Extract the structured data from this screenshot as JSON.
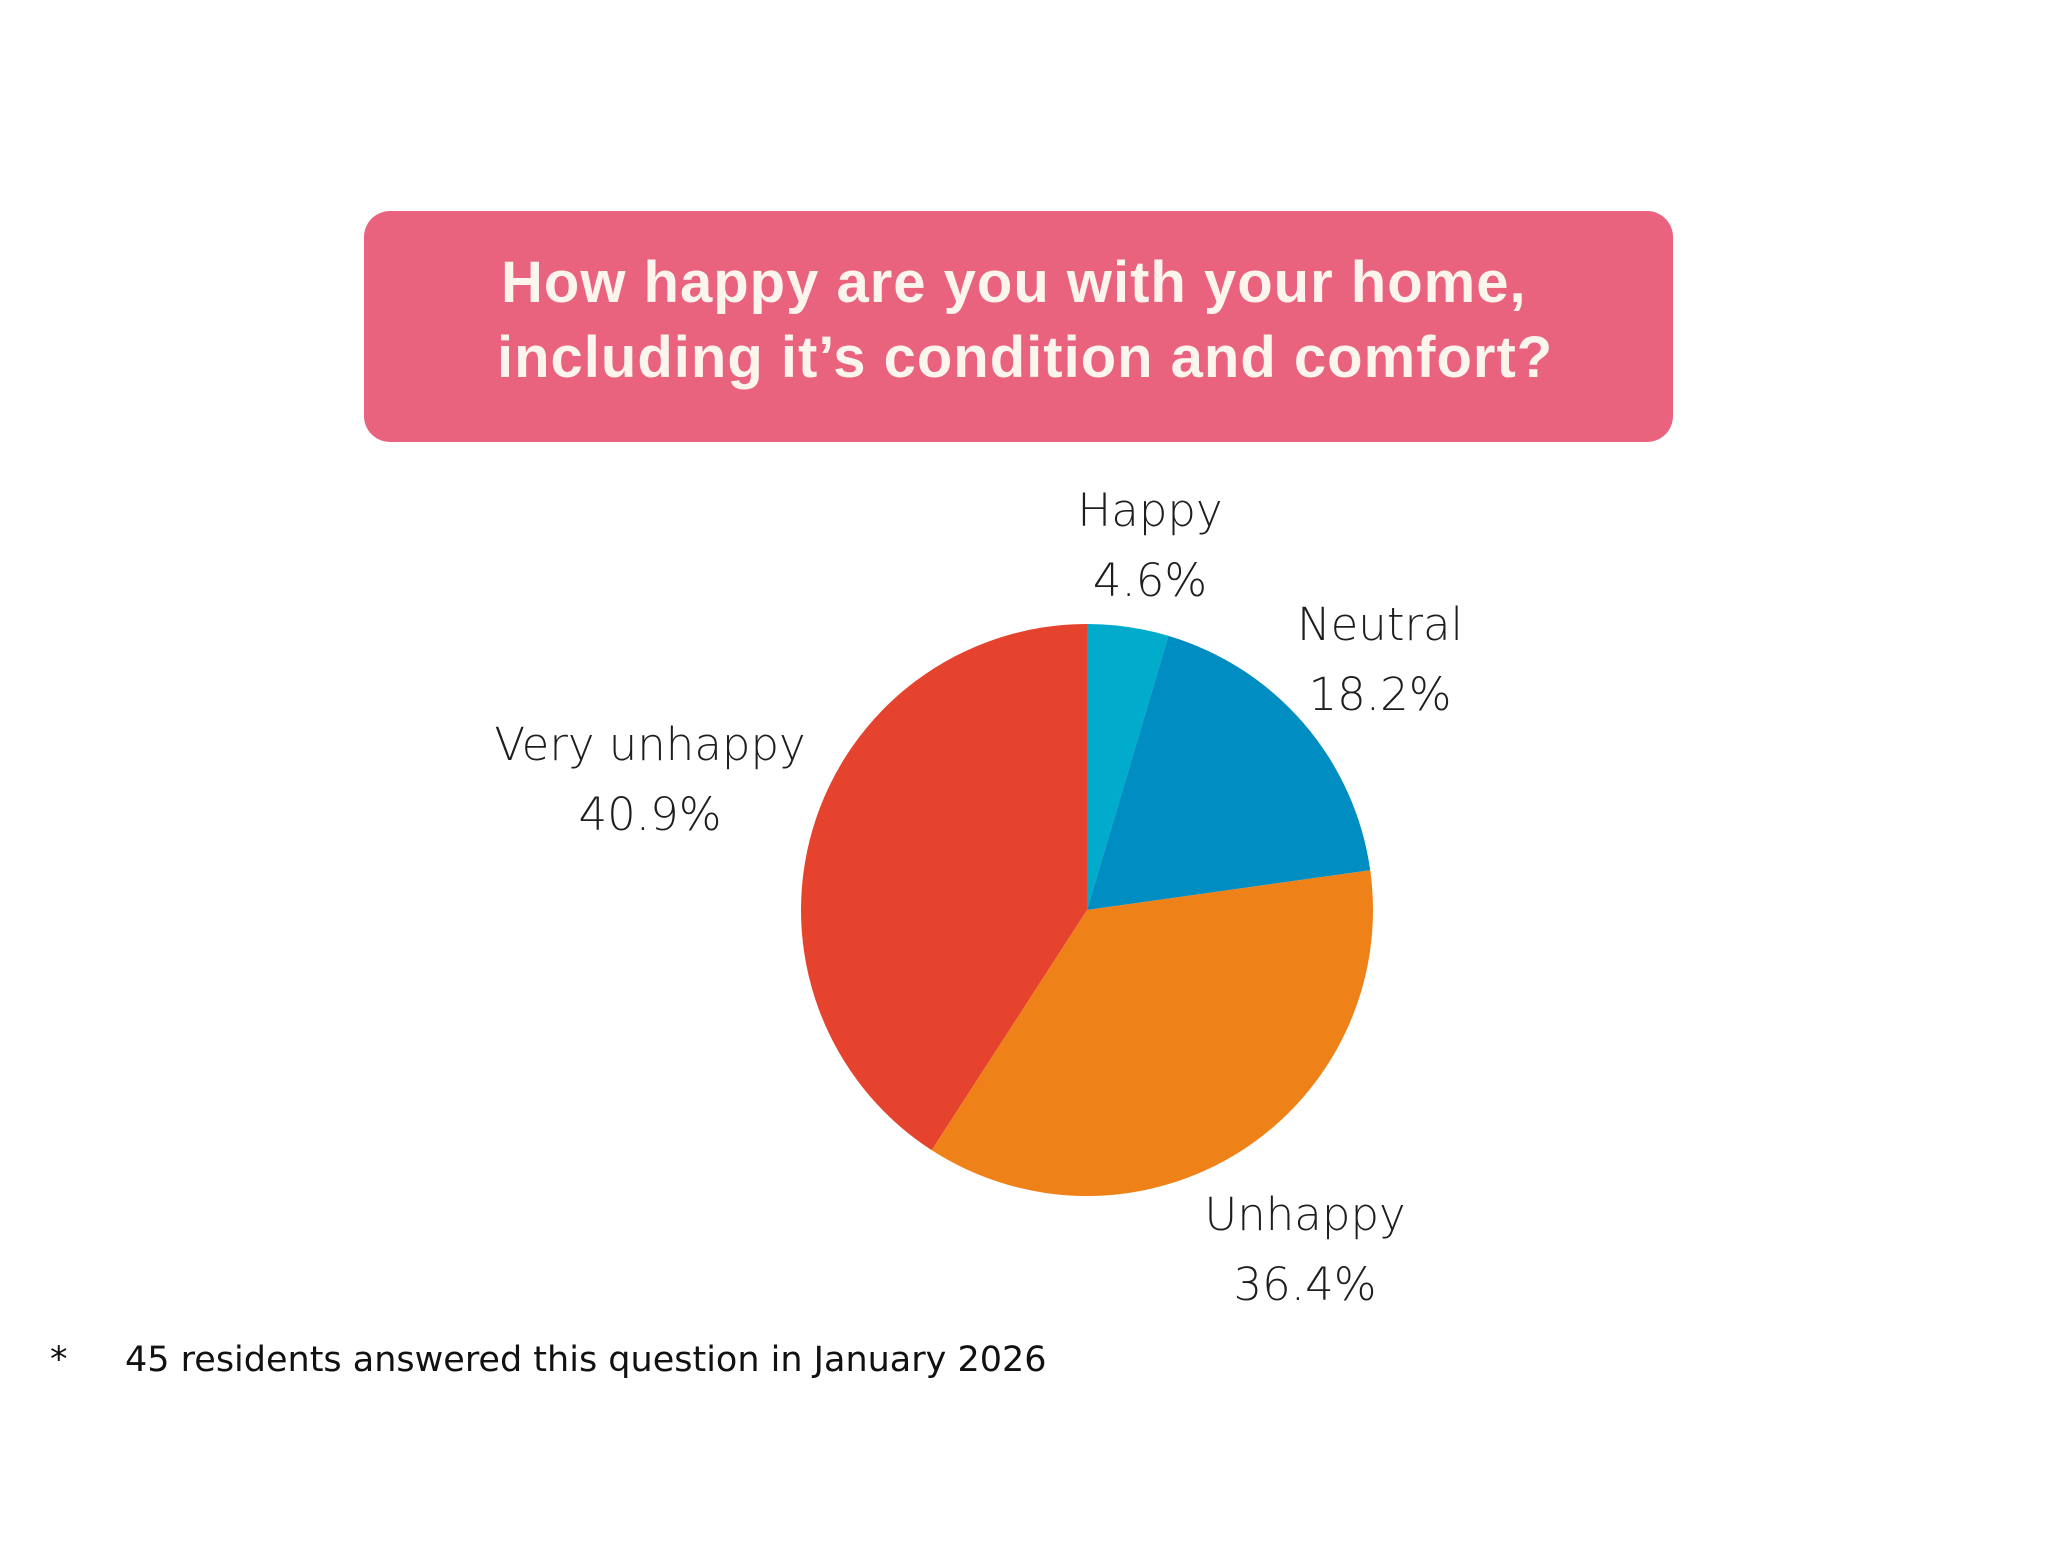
{
  "title": {
    "line1": "How happy are you with your home,",
    "line2": "including it’s condition and comfort?"
  },
  "colors": {
    "title_bg": "#e9637f",
    "title_text": "#fbf5ee"
  },
  "labels": {
    "happy": {
      "name": "Happy",
      "value": "4.6%"
    },
    "neutral": {
      "name": "Neutral",
      "value": "18.2%"
    },
    "unhappy": {
      "name": "Unhappy",
      "value": "36.4%"
    },
    "very_unhappy": {
      "name": "Very unhappy",
      "value": "40.9%"
    }
  },
  "footnote": {
    "marker": "*",
    "text": "45 residents answered this question in January 2026"
  },
  "chart_data": {
    "type": "pie",
    "title": "How happy are you with your home, including it’s condition and comfort?",
    "categories": [
      "Happy",
      "Neutral",
      "Unhappy",
      "Very unhappy"
    ],
    "values": [
      4.6,
      18.2,
      36.4,
      40.9
    ],
    "unit": "%",
    "colors": [
      "#00abcb",
      "#008dc2",
      "#ee8219",
      "#e5432d"
    ],
    "start_angle": "12 o'clock, clockwise",
    "legend": "labels placed beside slices",
    "note": "45 residents answered this question in January 2026"
  }
}
